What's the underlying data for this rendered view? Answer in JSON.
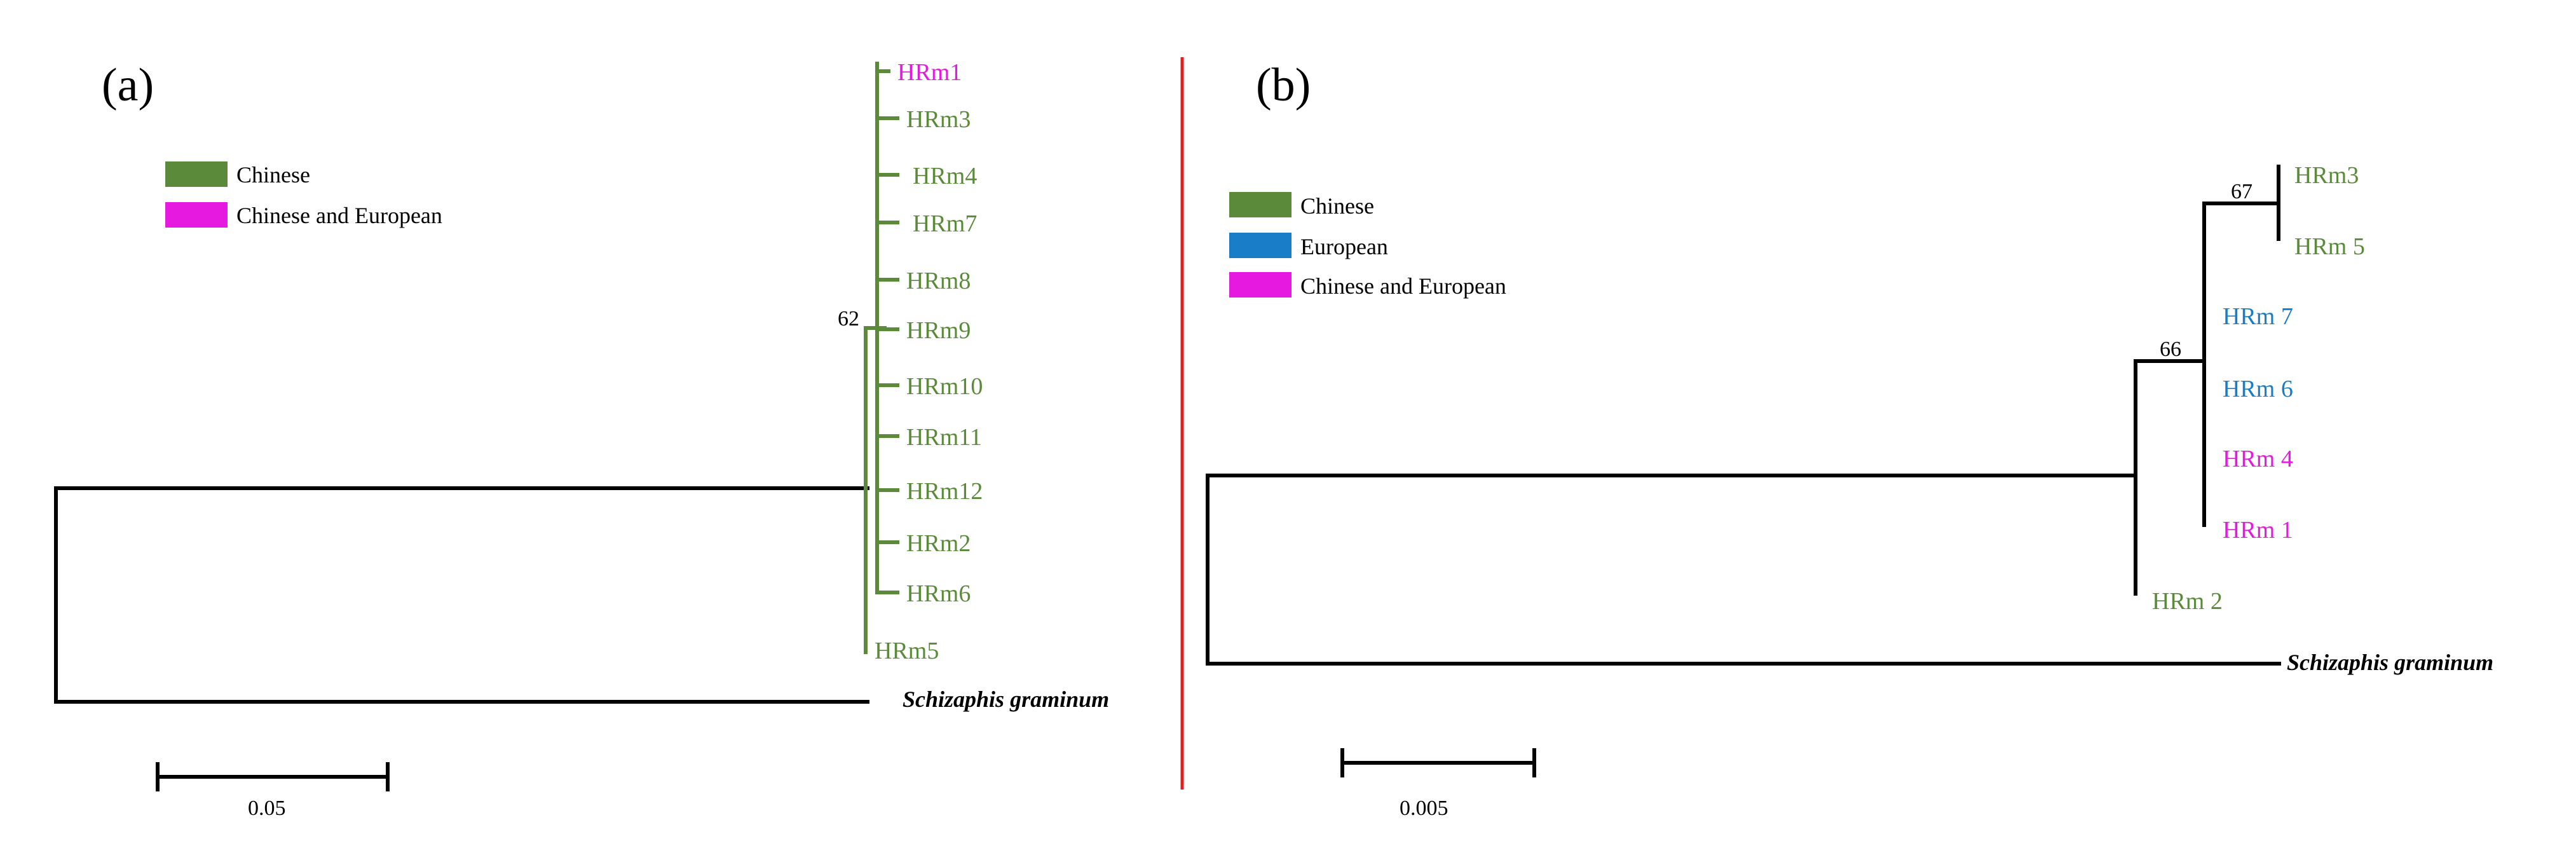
{
  "colors": {
    "chinese": "#5a8a3a",
    "european": "#1a7dc8",
    "chinese_and_european": "#e619e0",
    "branch": "#000000",
    "divider": "#e02020"
  },
  "panel_a": {
    "label": "(a)",
    "legend": [
      {
        "label": "Chinese",
        "color_key": "chinese"
      },
      {
        "label": "Chinese and European",
        "color_key": "chinese_and_european"
      }
    ],
    "leaves": [
      {
        "name": "HRm1",
        "color_key": "chinese_and_european"
      },
      {
        "name": "HRm3",
        "color_key": "chinese"
      },
      {
        "name": "HRm4",
        "color_key": "chinese"
      },
      {
        "name": "HRm7",
        "color_key": "chinese"
      },
      {
        "name": "HRm8",
        "color_key": "chinese"
      },
      {
        "name": "HRm9",
        "color_key": "chinese"
      },
      {
        "name": "HRm10",
        "color_key": "chinese"
      },
      {
        "name": "HRm11",
        "color_key": "chinese"
      },
      {
        "name": "HRm12",
        "color_key": "chinese"
      },
      {
        "name": "HRm2",
        "color_key": "chinese"
      },
      {
        "name": "HRm6",
        "color_key": "chinese"
      }
    ],
    "basal_leaf": {
      "name": "HRm5",
      "color_key": "chinese"
    },
    "support": "62",
    "outgroup": "Schizaphis graminum",
    "scale": "0.05"
  },
  "panel_b": {
    "label": "(b)",
    "legend": [
      {
        "label": "Chinese",
        "color_key": "chinese"
      },
      {
        "label": "European",
        "color_key": "european"
      },
      {
        "label": "Chinese and European",
        "color_key": "chinese_and_european"
      }
    ],
    "leaves": [
      {
        "name": "HRm3",
        "color_key": "chinese"
      },
      {
        "name": "HRm 5",
        "color_key": "chinese"
      },
      {
        "name": "HRm 7",
        "color_key": "european"
      },
      {
        "name": "HRm 6",
        "color_key": "european"
      },
      {
        "name": "HRm 4",
        "color_key": "chinese_and_european"
      },
      {
        "name": "HRm 1",
        "color_key": "chinese_and_european"
      },
      {
        "name": "HRm 2",
        "color_key": "chinese"
      }
    ],
    "support_upper": "67",
    "support_lower": "66",
    "outgroup": "Schizaphis graminum",
    "scale": "0.005"
  }
}
